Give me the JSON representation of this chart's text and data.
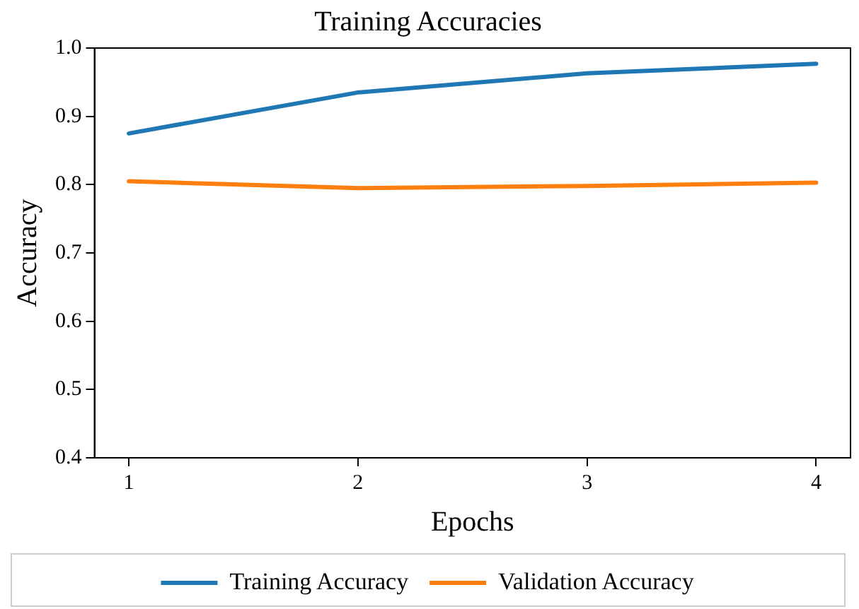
{
  "chart_data": {
    "type": "line",
    "title": "Training Accuracies",
    "xlabel": "Epochs",
    "ylabel": "Accuracy",
    "x": [
      1,
      2,
      3,
      4
    ],
    "series": [
      {
        "name": "Training Accuracy",
        "color": "#1f77b4",
        "values": [
          0.875,
          0.935,
          0.963,
          0.977
        ]
      },
      {
        "name": "Validation Accuracy",
        "color": "#ff7f0e",
        "values": [
          0.805,
          0.795,
          0.798,
          0.803
        ]
      }
    ],
    "xlim": [
      0.85,
      4.15
    ],
    "xticks": [
      1,
      2,
      3,
      4
    ],
    "ylim": [
      0.4,
      1.0
    ],
    "yticks": [
      {
        "value": 0.4,
        "label": "0.4"
      },
      {
        "value": 0.5,
        "label": "0.5"
      },
      {
        "value": 0.6,
        "label": "0.6"
      },
      {
        "value": 0.7,
        "label": "0.7"
      },
      {
        "value": 0.8,
        "label": "0.8"
      },
      {
        "value": 0.9,
        "label": "0.9"
      },
      {
        "value": 1.0,
        "label": "1.0"
      }
    ],
    "grid": false,
    "legend": "bottom",
    "marker": "none",
    "line_style": "solid"
  }
}
